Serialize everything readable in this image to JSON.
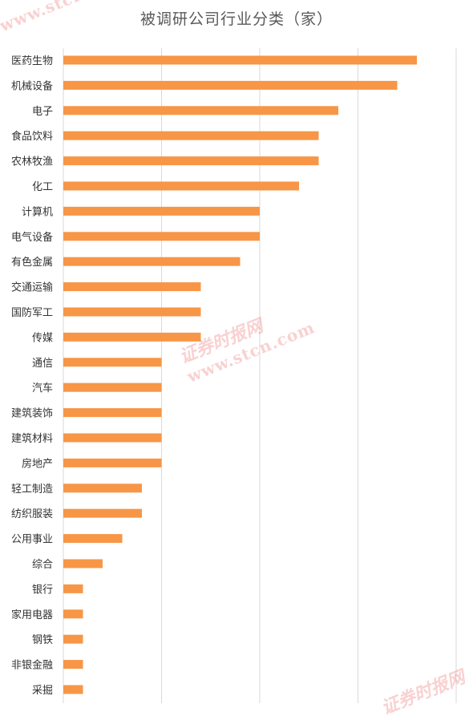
{
  "chart_data": {
    "type": "bar",
    "orientation": "horizontal",
    "title": "被调研公司行业分类（家）",
    "categories": [
      "医药生物",
      "机械设备",
      "电子",
      "食品饮料",
      "农林牧渔",
      "化工",
      "计算机",
      "电气设备",
      "有色金属",
      "交通运输",
      "国防军工",
      "传媒",
      "通信",
      "汽车",
      "建筑装饰",
      "建筑材料",
      "房地产",
      "轻工制造",
      "纺织服装",
      "公用事业",
      "综合",
      "银行",
      "家用电器",
      "钢铁",
      "非银金融",
      "采掘"
    ],
    "values": [
      18,
      17,
      14,
      13,
      13,
      12,
      10,
      10,
      9,
      7,
      7,
      7,
      5,
      5,
      5,
      5,
      5,
      4,
      4,
      3,
      2,
      1,
      1,
      1,
      1,
      1
    ],
    "xlim": [
      0,
      20
    ],
    "x_gridlines": [
      0,
      5,
      10,
      15,
      20
    ],
    "grid": true,
    "bar_color": "#F79646"
  },
  "watermark": {
    "cn": "证券时报网",
    "en": "www.stcn.com"
  }
}
